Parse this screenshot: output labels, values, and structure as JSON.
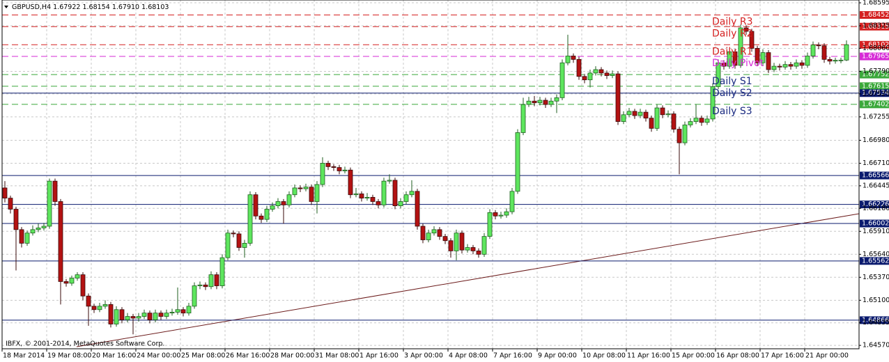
{
  "chart_data": {
    "type": "candlestick",
    "title": "GBPUSD,H4",
    "ohlc_labels": [
      "1.67922",
      "1.68154",
      "1.67910",
      "1.68103"
    ],
    "footer": "IBFX, © 2001-2014, MetaQuotes Software Corp.",
    "up_color": "#5ee65e",
    "down_color": "#b31212",
    "grid": true,
    "ylim": [
      1.6453,
      1.68628
    ],
    "yticks": [
      {
        "value": 1.6457,
        "label": "1.64570"
      },
      1.64835,
      {
        "value": 1.651,
        "label": "1.65100"
      },
      {
        "value": 1.6537,
        "label": "1.65370"
      },
      {
        "value": 1.6564,
        "label": "1.65640"
      },
      {
        "value": 1.6591,
        "label": "1.65910"
      },
      {
        "value": 1.6618,
        "label": "1.66180"
      },
      1.66445,
      {
        "value": 1.6671,
        "label": "1.66710"
      },
      {
        "value": 1.6698,
        "label": "1.66980"
      },
      1.67255,
      1.67525,
      {
        "value": 1.6779,
        "label": "1.67790"
      },
      {
        "value": 1.6806,
        "label": "1.68060"
      },
      1.68325,
      1.68595
    ],
    "x": [
      "18 Mar 2014",
      null,
      null,
      null,
      null,
      null,
      null,
      null,
      "19 Mar 08:00",
      null,
      null,
      null,
      null,
      null,
      null,
      null,
      "20 Mar 16:00",
      null,
      null,
      null,
      null,
      null,
      null,
      null,
      "24 Mar 00:00",
      null,
      null,
      null,
      null,
      null,
      null,
      null,
      "25 Mar 08:00",
      null,
      null,
      null,
      null,
      null,
      null,
      null,
      "26 Mar 16:00",
      null,
      null,
      null,
      null,
      null,
      null,
      null,
      "28 Mar 00:00",
      null,
      null,
      null,
      null,
      null,
      null,
      null,
      "31 Mar 08:00",
      null,
      null,
      null,
      null,
      null,
      null,
      null,
      "1 Apr 16:00",
      null,
      null,
      null,
      null,
      null,
      null,
      null,
      "3 Apr 00:00",
      null,
      null,
      null,
      null,
      null,
      null,
      null,
      "4 Apr 08:00",
      null,
      null,
      null,
      null,
      null,
      null,
      null,
      "7 Apr 16:00",
      null,
      null,
      null,
      null,
      null,
      null,
      null,
      "9 Apr 00:00",
      null,
      null,
      null,
      null,
      null,
      null,
      null,
      "10 Apr 08:00",
      null,
      null,
      null,
      null,
      null,
      null,
      null,
      "11 Apr 16:00",
      null,
      null,
      null,
      null,
      null,
      null,
      null,
      "15 Apr 00:00",
      null,
      null,
      null,
      null,
      null,
      null,
      null,
      "16 Apr 08:00",
      null,
      null,
      null,
      null,
      null,
      null,
      null,
      "17 Apr 16:00",
      null,
      null,
      null,
      null,
      null,
      null,
      null,
      "21 Apr 00:00",
      null,
      null,
      null,
      null,
      null,
      null,
      null
    ],
    "candles": [
      [
        1.6642,
        1.665,
        1.6625,
        1.663
      ],
      [
        1.663,
        1.6633,
        1.6612,
        1.6617
      ],
      [
        1.6617,
        1.662,
        1.6545,
        1.6593
      ],
      [
        1.6593,
        1.6596,
        1.6572,
        1.6577
      ],
      [
        1.6577,
        1.6592,
        1.6574,
        1.6589
      ],
      [
        1.6589,
        1.6598,
        1.6586,
        1.6593
      ],
      [
        1.6593,
        1.66,
        1.659,
        1.6595
      ],
      [
        1.6595,
        1.6601,
        1.6592,
        1.6597
      ],
      [
        1.6597,
        1.6653,
        1.6594,
        1.665
      ],
      [
        1.665,
        1.6653,
        1.6621,
        1.6626
      ],
      [
        1.6626,
        1.6629,
        1.6505,
        1.6532
      ],
      [
        1.6532,
        1.6535,
        1.6526,
        1.653
      ],
      [
        1.653,
        1.6539,
        1.6527,
        1.6536
      ],
      [
        1.6536,
        1.6543,
        1.6533,
        1.654
      ],
      [
        1.654,
        1.6543,
        1.651,
        1.6515
      ],
      [
        1.6515,
        1.6518,
        1.648,
        1.6503
      ],
      [
        1.6503,
        1.6506,
        1.6495,
        1.6499
      ],
      [
        1.6499,
        1.6507,
        1.6496,
        1.6503
      ],
      [
        1.6503,
        1.651,
        1.65,
        1.6505
      ],
      [
        1.6505,
        1.6508,
        1.6478,
        1.6482
      ],
      [
        1.6482,
        1.6503,
        1.6479,
        1.6499
      ],
      [
        1.6499,
        1.6502,
        1.6483,
        1.6487
      ],
      [
        1.6487,
        1.6495,
        1.6484,
        1.6491
      ],
      [
        1.6491,
        1.6494,
        1.647,
        1.6489
      ],
      [
        1.6489,
        1.6495,
        1.6485,
        1.6491
      ],
      [
        1.6491,
        1.6499,
        1.6488,
        1.6495
      ],
      [
        1.6495,
        1.6498,
        1.6483,
        1.6487
      ],
      [
        1.6487,
        1.6499,
        1.6484,
        1.6495
      ],
      [
        1.6495,
        1.6498,
        1.6487,
        1.6491
      ],
      [
        1.6491,
        1.6499,
        1.6488,
        1.6495
      ],
      [
        1.6495,
        1.65,
        1.6492,
        1.6496
      ],
      [
        1.6496,
        1.6525,
        1.6493,
        1.6499
      ],
      [
        1.6499,
        1.6502,
        1.6491,
        1.6495
      ],
      [
        1.6495,
        1.6507,
        1.6492,
        1.6503
      ],
      [
        1.6503,
        1.6531,
        1.65,
        1.6527
      ],
      [
        1.6527,
        1.6532,
        1.6523,
        1.6528
      ],
      [
        1.6528,
        1.6531,
        1.6522,
        1.6526
      ],
      [
        1.6526,
        1.6544,
        1.6523,
        1.654
      ],
      [
        1.654,
        1.6543,
        1.6523,
        1.6527
      ],
      [
        1.6527,
        1.6564,
        1.6524,
        1.656
      ],
      [
        1.656,
        1.6593,
        1.6557,
        1.6589
      ],
      [
        1.6589,
        1.6592,
        1.6584,
        1.6588
      ],
      [
        1.6588,
        1.6591,
        1.6568,
        1.6572
      ],
      [
        1.6572,
        1.6581,
        1.656,
        1.6577
      ],
      [
        1.6577,
        1.6638,
        1.6574,
        1.6634
      ],
      [
        1.6634,
        1.6637,
        1.6605,
        1.6609
      ],
      [
        1.6609,
        1.6612,
        1.6601,
        1.6605
      ],
      [
        1.6605,
        1.6621,
        1.6602,
        1.6617
      ],
      [
        1.6617,
        1.6625,
        1.6614,
        1.6621
      ],
      [
        1.6621,
        1.663,
        1.6618,
        1.6626
      ],
      [
        1.6626,
        1.6629,
        1.66,
        1.6622
      ],
      [
        1.6622,
        1.6638,
        1.6619,
        1.6634
      ],
      [
        1.6634,
        1.6646,
        1.6631,
        1.6642
      ],
      [
        1.6642,
        1.6645,
        1.6637,
        1.6641
      ],
      [
        1.6641,
        1.6647,
        1.6638,
        1.6643
      ],
      [
        1.6643,
        1.6646,
        1.6622,
        1.6626
      ],
      [
        1.6626,
        1.665,
        1.6612,
        1.6646
      ],
      [
        1.6646,
        1.6678,
        1.6643,
        1.6671
      ],
      [
        1.6671,
        1.6674,
        1.6663,
        1.6667
      ],
      [
        1.6667,
        1.667,
        1.6662,
        1.6666
      ],
      [
        1.6666,
        1.6669,
        1.6658,
        1.6662
      ],
      [
        1.6662,
        1.6667,
        1.6659,
        1.6663
      ],
      [
        1.6663,
        1.6666,
        1.663,
        1.6634
      ],
      [
        1.6634,
        1.6642,
        1.6631,
        1.6635
      ],
      [
        1.6635,
        1.6638,
        1.6626,
        1.663
      ],
      [
        1.663,
        1.6636,
        1.6627,
        1.6631
      ],
      [
        1.6631,
        1.6634,
        1.6622,
        1.6626
      ],
      [
        1.6626,
        1.6629,
        1.6618,
        1.6622
      ],
      [
        1.6622,
        1.6654,
        1.6619,
        1.665
      ],
      [
        1.665,
        1.6658,
        1.6647,
        1.6651
      ],
      [
        1.6651,
        1.6654,
        1.6617,
        1.6621
      ],
      [
        1.6621,
        1.663,
        1.6618,
        1.6626
      ],
      [
        1.6626,
        1.6638,
        1.6623,
        1.6634
      ],
      [
        1.6634,
        1.6651,
        1.6631,
        1.6638
      ],
      [
        1.6638,
        1.6641,
        1.6593,
        1.6597
      ],
      [
        1.6597,
        1.66,
        1.6577,
        1.6581
      ],
      [
        1.6581,
        1.6593,
        1.6578,
        1.6589
      ],
      [
        1.6589,
        1.6597,
        1.6586,
        1.6593
      ],
      [
        1.6593,
        1.6596,
        1.6581,
        1.6585
      ],
      [
        1.6585,
        1.6588,
        1.6576,
        1.658
      ],
      [
        1.658,
        1.6583,
        1.656,
        1.6568
      ],
      [
        1.6568,
        1.6593,
        1.6557,
        1.6589
      ],
      [
        1.6589,
        1.6592,
        1.6565,
        1.6569
      ],
      [
        1.6569,
        1.6576,
        1.6566,
        1.6572
      ],
      [
        1.6572,
        1.6575,
        1.6564,
        1.6568
      ],
      [
        1.6568,
        1.6571,
        1.656,
        1.6564
      ],
      [
        1.6564,
        1.6589,
        1.6561,
        1.6585
      ],
      [
        1.6585,
        1.6617,
        1.6582,
        1.6613
      ],
      [
        1.6613,
        1.6616,
        1.6605,
        1.6609
      ],
      [
        1.6609,
        1.6614,
        1.6606,
        1.661
      ],
      [
        1.661,
        1.6618,
        1.6607,
        1.6614
      ],
      [
        1.6614,
        1.6642,
        1.6611,
        1.6638
      ],
      [
        1.6638,
        1.6711,
        1.6635,
        1.6707
      ],
      [
        1.6707,
        1.6748,
        1.6704,
        1.674
      ],
      [
        1.674,
        1.6749,
        1.6737,
        1.6744
      ],
      [
        1.6744,
        1.675,
        1.6738,
        1.6742
      ],
      [
        1.6742,
        1.6749,
        1.6739,
        1.6745
      ],
      [
        1.6745,
        1.6748,
        1.6736,
        1.674
      ],
      [
        1.674,
        1.6748,
        1.6737,
        1.6744
      ],
      [
        1.6744,
        1.6752,
        1.673,
        1.6748
      ],
      [
        1.6748,
        1.6793,
        1.6745,
        1.6789
      ],
      [
        1.6789,
        1.6822,
        1.6786,
        1.6797
      ],
      [
        1.6797,
        1.68,
        1.6789,
        1.6793
      ],
      [
        1.6793,
        1.6796,
        1.6769,
        1.6773
      ],
      [
        1.6773,
        1.6776,
        1.6765,
        1.6769
      ],
      [
        1.6769,
        1.6781,
        1.676,
        1.6777
      ],
      [
        1.6777,
        1.6785,
        1.6774,
        1.6781
      ],
      [
        1.6781,
        1.6784,
        1.6773,
        1.6777
      ],
      [
        1.6777,
        1.678,
        1.677,
        1.6774
      ],
      [
        1.6774,
        1.678,
        1.6771,
        1.6776
      ],
      [
        1.6776,
        1.6779,
        1.6716,
        1.672
      ],
      [
        1.672,
        1.6732,
        1.6717,
        1.6728
      ],
      [
        1.6728,
        1.6736,
        1.6725,
        1.6732
      ],
      [
        1.6732,
        1.6735,
        1.6723,
        1.6727
      ],
      [
        1.6727,
        1.6735,
        1.6724,
        1.6731
      ],
      [
        1.6731,
        1.6734,
        1.672,
        1.6724
      ],
      [
        1.6724,
        1.6727,
        1.6708,
        1.6712
      ],
      [
        1.6712,
        1.674,
        1.6709,
        1.6736
      ],
      [
        1.6736,
        1.6739,
        1.6724,
        1.6728
      ],
      [
        1.6728,
        1.6733,
        1.6725,
        1.6729
      ],
      [
        1.6729,
        1.6732,
        1.6707,
        1.6711
      ],
      [
        1.6711,
        1.6714,
        1.6658,
        1.6695
      ],
      [
        1.6695,
        1.672,
        1.6692,
        1.6716
      ],
      [
        1.6716,
        1.6724,
        1.6713,
        1.672
      ],
      [
        1.672,
        1.674,
        1.6717,
        1.6724
      ],
      [
        1.6724,
        1.6727,
        1.6715,
        1.6719
      ],
      [
        1.6719,
        1.6727,
        1.6716,
        1.6723
      ],
      [
        1.6723,
        1.6765,
        1.672,
        1.6761
      ],
      [
        1.6761,
        1.6793,
        1.6758,
        1.6789
      ],
      [
        1.6789,
        1.6792,
        1.6781,
        1.6785
      ],
      [
        1.6785,
        1.6806,
        1.6782,
        1.6802
      ],
      [
        1.6802,
        1.6805,
        1.6782,
        1.6786
      ],
      [
        1.6786,
        1.6834,
        1.6783,
        1.683
      ],
      [
        1.683,
        1.6833,
        1.6822,
        1.6826
      ],
      [
        1.6826,
        1.6829,
        1.6802,
        1.6806
      ],
      [
        1.6806,
        1.6809,
        1.6785,
        1.6789
      ],
      [
        1.6789,
        1.6805,
        1.6786,
        1.6801
      ],
      [
        1.6801,
        1.6804,
        1.6777,
        1.6781
      ],
      [
        1.6781,
        1.6789,
        1.6778,
        1.6785
      ],
      [
        1.6785,
        1.6788,
        1.678,
        1.6784
      ],
      [
        1.6784,
        1.6791,
        1.6781,
        1.6787
      ],
      [
        1.6787,
        1.679,
        1.6781,
        1.6785
      ],
      [
        1.6785,
        1.6793,
        1.6782,
        1.6789
      ],
      [
        1.6789,
        1.6792,
        1.6782,
        1.6786
      ],
      [
        1.6786,
        1.6801,
        1.6783,
        1.6797
      ],
      [
        1.6797,
        1.6814,
        1.6794,
        1.681
      ],
      [
        1.681,
        1.6813,
        1.6805,
        1.6809
      ],
      [
        1.6809,
        1.6812,
        1.6789,
        1.6793
      ],
      [
        1.6793,
        1.6796,
        1.6787,
        1.6791
      ],
      [
        1.6791,
        1.6795,
        1.6788,
        1.6792
      ],
      [
        1.6792,
        1.6795,
        1.67885,
        1.67922
      ],
      [
        1.67922,
        1.68154,
        1.6791,
        1.68103
      ]
    ],
    "levels": [
      {
        "value": 1.68452,
        "color": "#d42020",
        "dashed": true,
        "label": "Daily R3"
      },
      {
        "value": 1.68315,
        "color": "#d42020",
        "dashed": true,
        "label": "Daily R2"
      },
      {
        "value": 1.68102,
        "color": "#d42020",
        "dashed": true,
        "label": "Daily R1"
      },
      {
        "value": 1.67965,
        "color": "#d62ad6",
        "dashed": true,
        "label": "Daily Pivot"
      },
      {
        "value": 1.67752,
        "color": "#3aa83a",
        "dashed": true,
        "label": "Daily S1"
      },
      {
        "value": 1.67615,
        "color": "#3aa83a",
        "dashed": true,
        "label": "Daily S2"
      },
      {
        "value": 1.67534,
        "color": "#0a1a6e",
        "dashed": false
      },
      {
        "value": 1.67402,
        "color": "#3aa83a",
        "dashed": true,
        "label": "Daily S3"
      },
      {
        "value": 1.66566,
        "color": "#0a1a6e",
        "dashed": false
      },
      {
        "value": 1.66226,
        "color": "#0a1a6e",
        "dashed": false
      },
      {
        "value": 1.66002,
        "color": "#0a1a6e",
        "dashed": false
      },
      {
        "value": 1.65562,
        "color": "#0a1a6e",
        "dashed": false
      },
      {
        "value": 1.64866,
        "color": "#0a1a6e",
        "dashed": false
      }
    ]
  }
}
